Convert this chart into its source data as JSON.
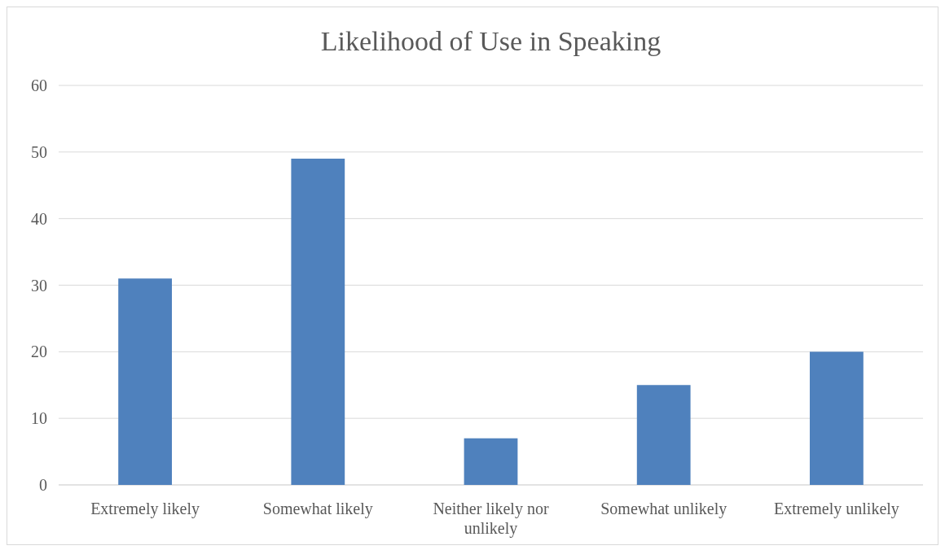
{
  "chart_data": {
    "type": "bar",
    "title": "Likelihood of Use in Speaking",
    "categories": [
      "Extremely likely",
      "Somewhat likely",
      "Neither likely nor unlikely",
      "Somewhat unlikely",
      "Extremely unlikely"
    ],
    "values": [
      31,
      49,
      7,
      15,
      20
    ],
    "color": "#4f81bd",
    "ylim": [
      0,
      60
    ],
    "yticks": [
      0,
      10,
      20,
      30,
      40,
      50,
      60
    ],
    "grid": "y"
  }
}
